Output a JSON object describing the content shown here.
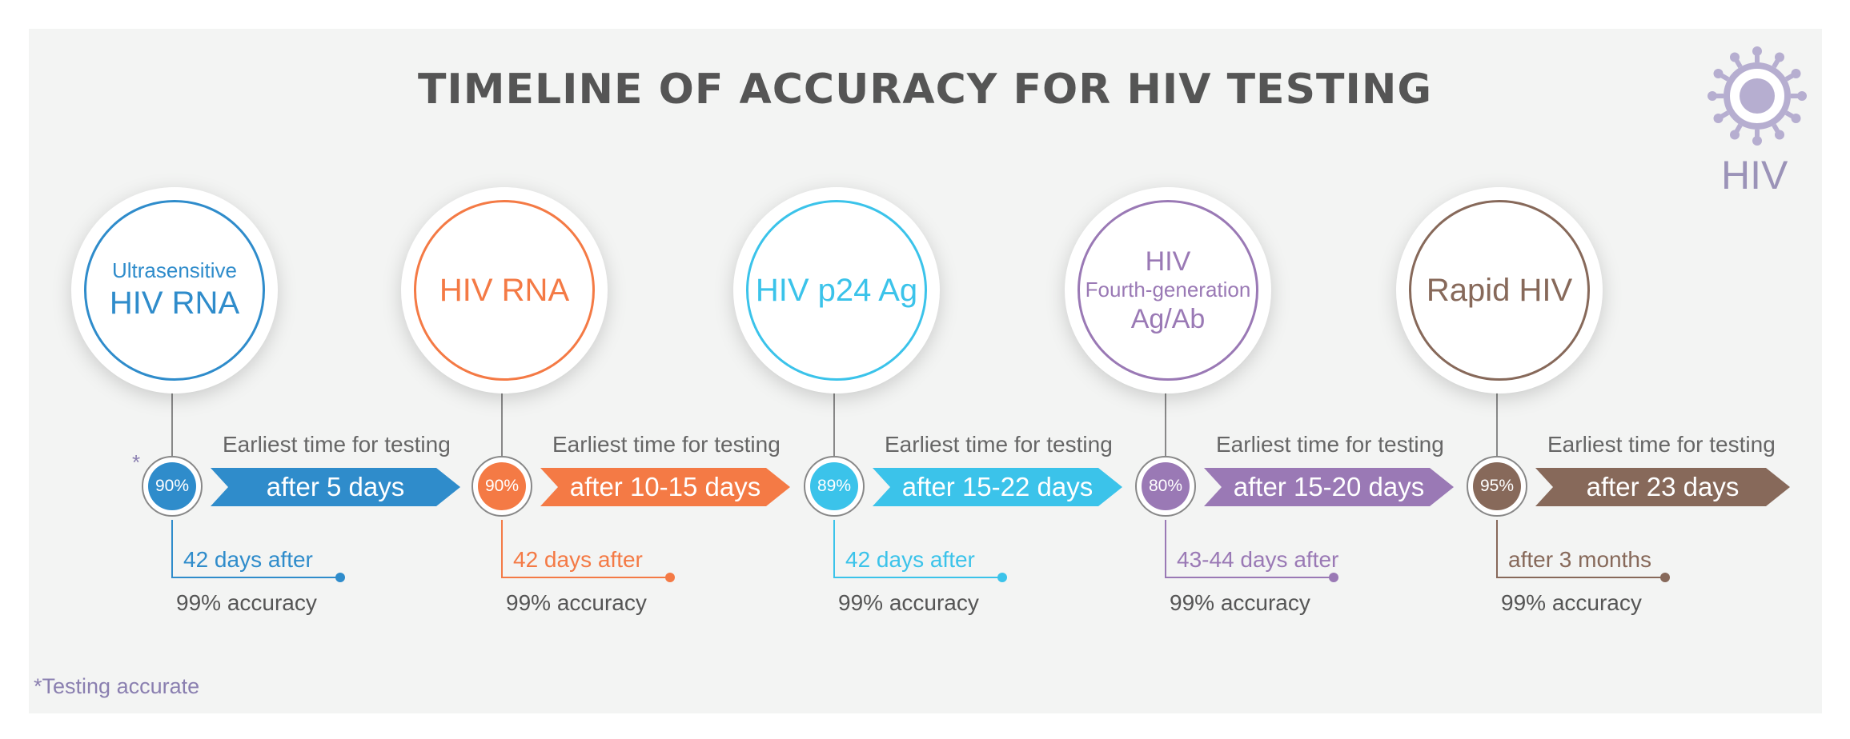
{
  "title": "TIMELINE OF ACCURACY FOR HIV TESTING",
  "logo": {
    "label": "HIV",
    "icon": "virus-icon",
    "color": "#9b93b8"
  },
  "footnote": {
    "marker": "*",
    "text": "Testing accurate"
  },
  "stages": [
    {
      "id": "ultrasensitive-hiv-rna",
      "name_lines": [
        "Ultrasensitive",
        "HIV RNA"
      ],
      "color": "#2f8ccb",
      "earliest_label": "Earliest time for testing",
      "earliest_time": "after 5 days",
      "initial_accuracy": "90%",
      "marker": "*",
      "full_time": "42 days after",
      "full_accuracy": "99% accuracy"
    },
    {
      "id": "hiv-rna",
      "name_lines": [
        "HIV RNA"
      ],
      "color": "#f47a45",
      "earliest_label": "Earliest time for testing",
      "earliest_time": "after 10-15 days",
      "initial_accuracy": "90%",
      "full_time": "42 days after",
      "full_accuracy": "99% accuracy"
    },
    {
      "id": "hiv-p24-ag",
      "name_lines": [
        "HIV p24 Ag"
      ],
      "color": "#3bc3ea",
      "earliest_label": "Earliest time for testing",
      "earliest_time": "after 15-22 days",
      "initial_accuracy": "89%",
      "full_time": "42 days after",
      "full_accuracy": "99% accuracy"
    },
    {
      "id": "hiv-fourth-generation",
      "name_lines": [
        "HIV",
        "Fourth-generation",
        "Ag/Ab"
      ],
      "color": "#9a79b5",
      "earliest_label": "Earliest time for testing",
      "earliest_time": "after 15-20 days",
      "initial_accuracy": "80%",
      "full_time": "43-44 days after",
      "full_accuracy": "99% accuracy"
    },
    {
      "id": "rapid-hiv",
      "name_lines": [
        "Rapid HIV"
      ],
      "color": "#87695a",
      "earliest_label": "Earliest time for testing",
      "earliest_time": "after 23 days",
      "initial_accuracy": "95%",
      "full_time": "after 3 months",
      "full_accuracy": "99% accuracy"
    }
  ]
}
